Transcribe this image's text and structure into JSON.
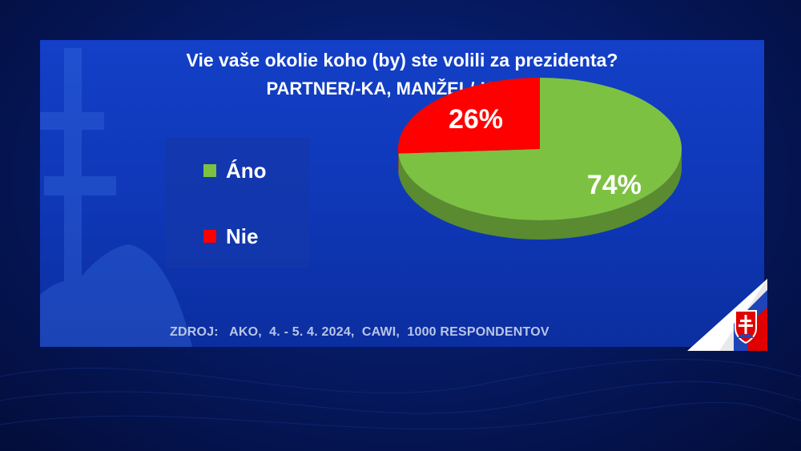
{
  "chart_data": {
    "type": "pie",
    "title": "Vie vaše okolie koho (by) ste volili za prezidenta?",
    "subtitle": "PARTNER/-KA, MANŽEL/-KA",
    "categories": [
      "Áno",
      "Nie"
    ],
    "values": [
      74,
      26
    ],
    "value_labels": [
      "74%",
      "26%"
    ],
    "colors": [
      "#7dc142",
      "#ff0000"
    ],
    "legend": "left"
  },
  "source": "ZDROJ:   AKO,  4. - 5. 4. 2024,  CAWI,  1000 RESPONDENTOV",
  "colors": {
    "background": "#061a63",
    "panel": "#1340c8",
    "text": "#ffffff"
  },
  "icons": {
    "corner": "slovak-flag-emblem-icon"
  }
}
